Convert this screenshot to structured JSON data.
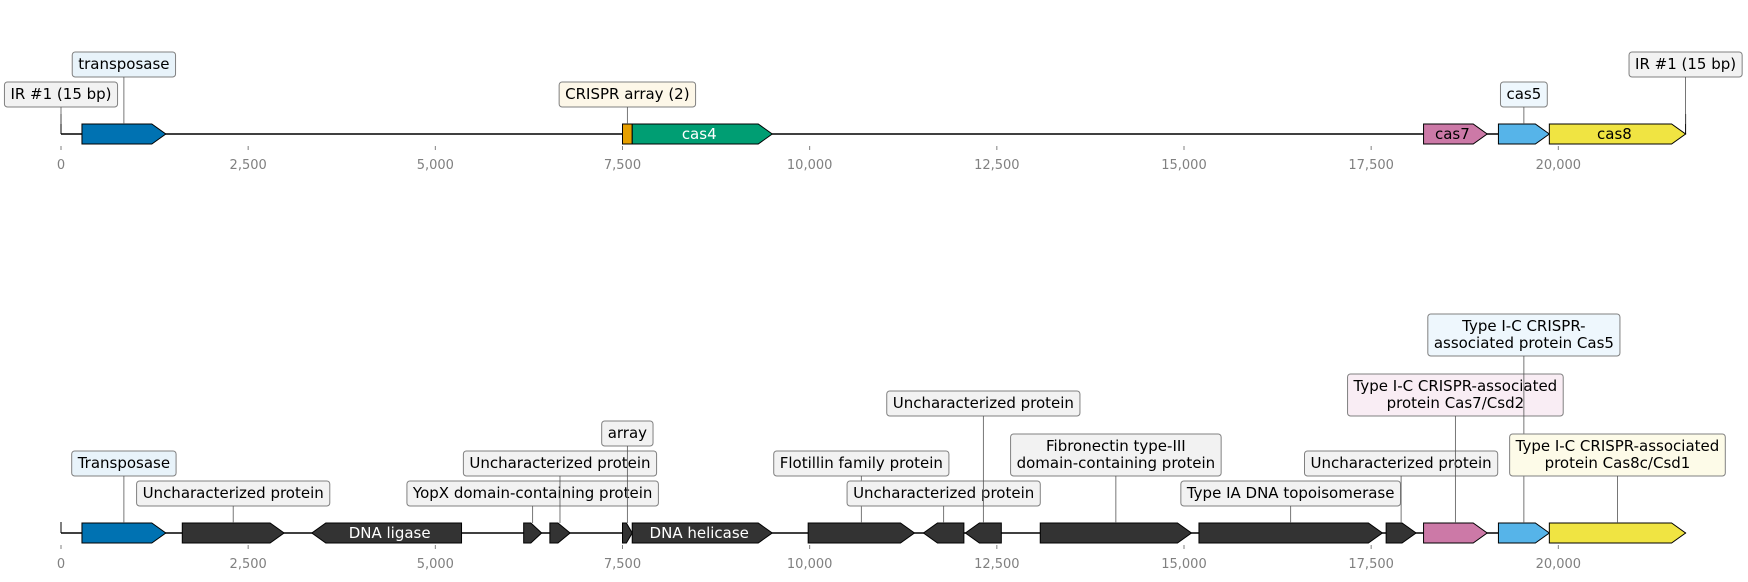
{
  "colors": {
    "transposase": "#0072b2",
    "crispr_array": "#e69f00",
    "cas4": "#009e73",
    "cas7": "#cc79a7",
    "cas5": "#56b4e9",
    "cas8": "#f0e442",
    "dark": "#333333",
    "axis": "#808080",
    "label_border": "#808080"
  },
  "axis": {
    "min": 0,
    "max": 22000,
    "ticks": [
      0,
      2500,
      5000,
      7500,
      10000,
      12500,
      15000,
      17500,
      20000
    ],
    "tick_labels": [
      "0",
      "2,500",
      "5,000",
      "7,500",
      "10,000",
      "12,500",
      "15,000",
      "17,500",
      "20,000"
    ]
  },
  "tracks": [
    {
      "id": "track-top",
      "sequence": [
        0,
        21700
      ],
      "features": [
        {
          "id": "ir-left",
          "type": "marker",
          "pos": 0,
          "label": [
            "IR #1 (15 bp)"
          ],
          "label_color": "#f2f2f2",
          "level": 1
        },
        {
          "id": "transposase",
          "type": "gene",
          "start": 280,
          "end": 1400,
          "strand": 1,
          "color": "#0072b2",
          "label": [
            "transposase"
          ],
          "label_color": "#e8f3fa",
          "level": 2
        },
        {
          "id": "crispr-array",
          "type": "gene",
          "start": 7500,
          "end": 7630,
          "strand": 0,
          "color": "#e69f00",
          "label": [
            "CRISPR array (2)"
          ],
          "label_color": "#fdf7e8",
          "level": 1
        },
        {
          "id": "cas4",
          "type": "gene",
          "start": 7630,
          "end": 9500,
          "strand": 1,
          "color": "#009e73",
          "inner": "cas4",
          "inner_color": "#ffffff"
        },
        {
          "id": "cas7",
          "type": "gene",
          "start": 18200,
          "end": 19050,
          "strand": 1,
          "color": "#cc79a7",
          "inner": "cas7",
          "inner_color": "#000000"
        },
        {
          "id": "cas5",
          "type": "gene",
          "start": 19200,
          "end": 19880,
          "strand": 1,
          "color": "#56b4e9",
          "label": [
            "cas5"
          ],
          "label_color": "#eef7fd",
          "level": 1
        },
        {
          "id": "cas8",
          "type": "gene",
          "start": 19880,
          "end": 21700,
          "strand": 1,
          "color": "#f0e442",
          "inner": "cas8",
          "inner_color": "#000000"
        },
        {
          "id": "ir-right",
          "type": "marker",
          "pos": 21700,
          "label": [
            "IR #1 (15 bp)"
          ],
          "label_color": "#f2f2f2",
          "level": 2
        }
      ]
    },
    {
      "id": "track-bottom",
      "sequence": [
        0,
        21700
      ],
      "features": [
        {
          "id": "transposase-b",
          "type": "gene",
          "start": 280,
          "end": 1400,
          "strand": 1,
          "color": "#0072b2",
          "label": [
            "Transposase"
          ],
          "label_color": "#e8f3fa",
          "level": 2
        },
        {
          "id": "unchar-1",
          "type": "gene",
          "start": 1620,
          "end": 2980,
          "strand": 1,
          "color": "#333333",
          "label": [
            "Uncharacterized protein"
          ],
          "label_color": "#f2f2f2",
          "level": 1
        },
        {
          "id": "dna-ligase",
          "type": "gene",
          "start": 3350,
          "end": 5350,
          "strand": -1,
          "color": "#333333",
          "inner": "DNA ligase",
          "inner_color": "#ffffff"
        },
        {
          "id": "yopx",
          "type": "gene",
          "start": 6180,
          "end": 6420,
          "strand": 1,
          "color": "#333333",
          "label": [
            "YopX domain-containing protein"
          ],
          "label_color": "#f2f2f2",
          "level": 1
        },
        {
          "id": "unchar-2",
          "type": "gene",
          "start": 6530,
          "end": 6800,
          "strand": 1,
          "color": "#333333",
          "label": [
            "Uncharacterized protein"
          ],
          "label_color": "#f2f2f2",
          "level": 2
        },
        {
          "id": "array-b",
          "type": "gene",
          "start": 7500,
          "end": 7630,
          "strand": 1,
          "color": "#333333",
          "label": [
            "array"
          ],
          "label_color": "#f2f2f2",
          "level": 3
        },
        {
          "id": "dna-helicase",
          "type": "gene",
          "start": 7630,
          "end": 9500,
          "strand": 1,
          "color": "#333333",
          "inner": "DNA helicase",
          "inner_color": "#ffffff"
        },
        {
          "id": "flotillin",
          "type": "gene",
          "start": 9980,
          "end": 11400,
          "strand": 1,
          "color": "#333333",
          "label": [
            "Flotillin family protein"
          ],
          "label_color": "#f2f2f2",
          "level": 2
        },
        {
          "id": "unchar-3",
          "type": "gene",
          "start": 11520,
          "end": 12060,
          "strand": -1,
          "color": "#333333",
          "label": [
            "Uncharacterized protein"
          ],
          "label_color": "#f2f2f2",
          "level": 1
        },
        {
          "id": "unchar-4",
          "type": "gene",
          "start": 12080,
          "end": 12560,
          "strand": -1,
          "color": "#333333",
          "label": [
            "Uncharacterized protein"
          ],
          "label_color": "#f2f2f2",
          "level": 4
        },
        {
          "id": "fibronectin",
          "type": "gene",
          "start": 13080,
          "end": 15100,
          "strand": 1,
          "color": "#333333",
          "label": [
            "Fibronectin type-III",
            "domain-containing protein"
          ],
          "label_color": "#f2f2f2",
          "level": 2
        },
        {
          "id": "topoisomerase",
          "type": "gene",
          "start": 15200,
          "end": 17650,
          "strand": 1,
          "color": "#333333",
          "label": [
            "Type IA DNA topoisomerase"
          ],
          "label_color": "#f2f2f2",
          "level": 1
        },
        {
          "id": "unchar-5",
          "type": "gene",
          "start": 17700,
          "end": 18100,
          "strand": 1,
          "color": "#333333",
          "label": [
            "Uncharacterized protein"
          ],
          "label_color": "#f2f2f2",
          "level": 2
        },
        {
          "id": "cas7-b",
          "type": "gene",
          "start": 18200,
          "end": 19050,
          "strand": 1,
          "color": "#cc79a7",
          "label": [
            "Type I-C CRISPR-associated",
            "protein Cas7/Csd2"
          ],
          "label_color": "#f9edf4",
          "level": 4
        },
        {
          "id": "cas5-b",
          "type": "gene",
          "start": 19200,
          "end": 19880,
          "strand": 1,
          "color": "#56b4e9",
          "label": [
            "Type I-C CRISPR-",
            "associated protein Cas5"
          ],
          "label_color": "#eef7fd",
          "level": 6
        },
        {
          "id": "cas8-b",
          "type": "gene",
          "start": 19880,
          "end": 21700,
          "strand": 1,
          "color": "#f0e442",
          "label": [
            "Type I-C CRISPR-associated",
            "protein Cas8c/Csd1"
          ],
          "label_color": "#fdfbe8",
          "level": 2
        }
      ]
    }
  ]
}
